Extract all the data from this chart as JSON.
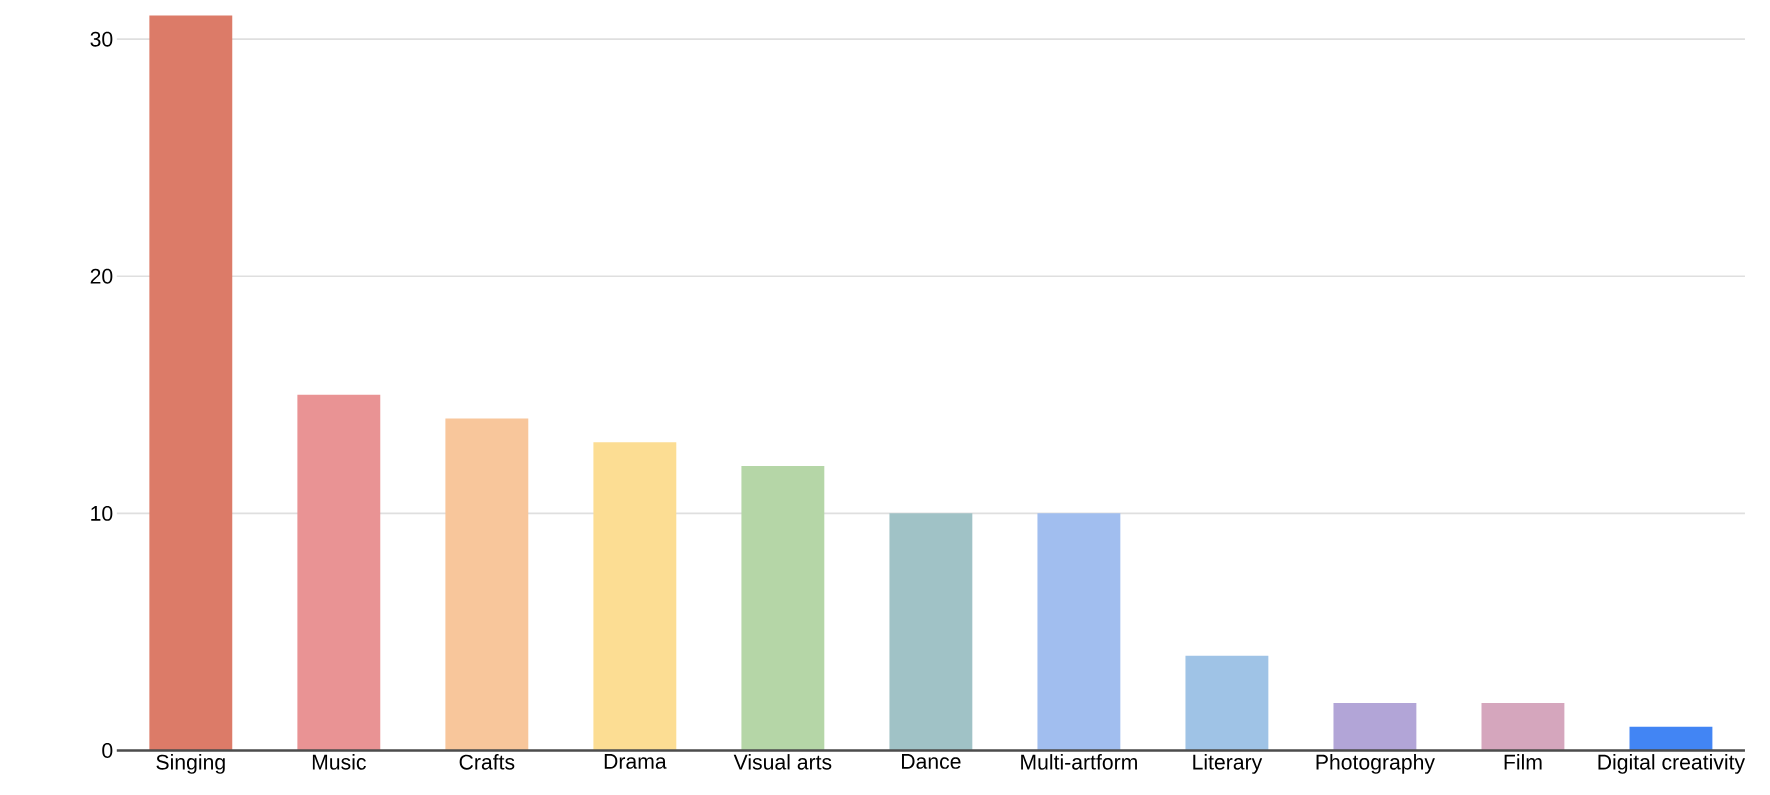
{
  "chart_data": {
    "type": "bar",
    "categories": [
      "Singing",
      "Music",
      "Crafts",
      "Drama",
      "Visual arts",
      "Dance",
      "Multi-artform",
      "Literary",
      "Photography",
      "Film",
      "Digital creativity"
    ],
    "values": [
      31,
      15,
      14,
      13,
      12,
      10,
      10,
      4,
      2,
      2,
      1
    ],
    "colors": [
      "#dc7b68",
      "#e99394",
      "#f8c69b",
      "#fcdd93",
      "#b5d6a7",
      "#a0c2c6",
      "#a1beef",
      "#9fc3e6",
      "#b2a5d7",
      "#d5a6bd",
      "#4285f4"
    ],
    "ylim": [
      0,
      31
    ],
    "yticks": [
      0,
      10,
      20,
      30
    ],
    "grid": "y"
  }
}
